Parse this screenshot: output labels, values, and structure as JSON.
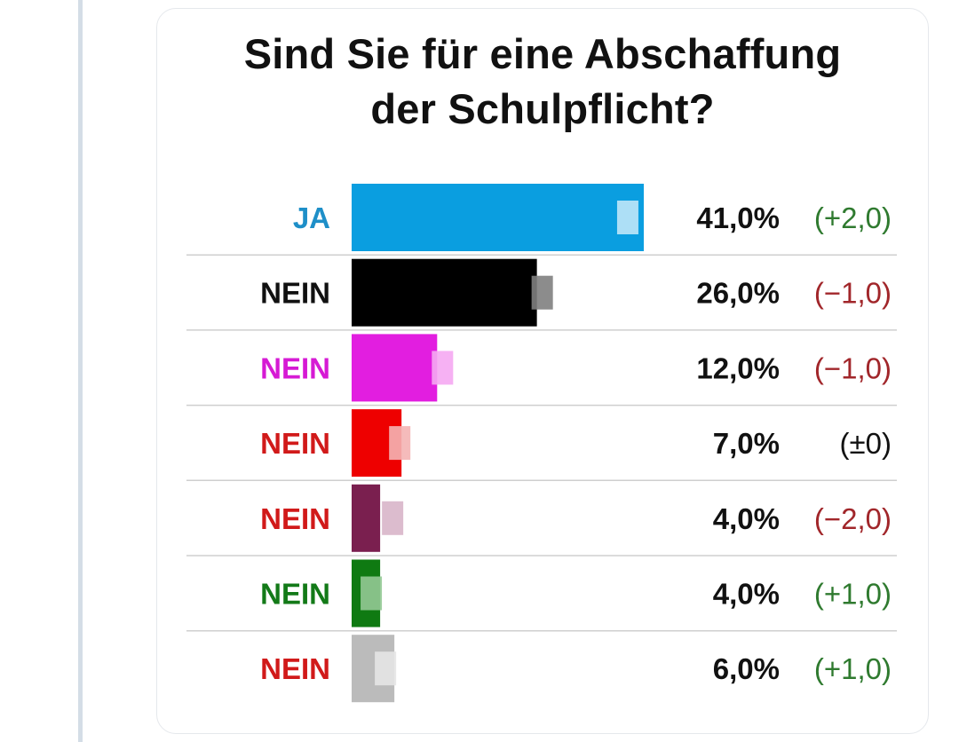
{
  "chart_data": {
    "type": "bar",
    "orientation": "horizontal",
    "title_lines": [
      "Sind Sie für eine Abschaffung",
      "der Schulpflicht?"
    ],
    "categories": [
      "JA",
      "NEIN",
      "NEIN",
      "NEIN",
      "NEIN",
      "NEIN",
      "NEIN"
    ],
    "values": [
      41.0,
      26.0,
      12.0,
      7.0,
      4.0,
      4.0,
      6.0
    ],
    "previous_values": [
      39.0,
      27.0,
      13.0,
      7.0,
      6.0,
      3.0,
      5.0
    ],
    "value_labels": [
      "41,0%",
      "26,0%",
      "12,0%",
      "7,0%",
      "4,0%",
      "4,0%",
      "6,0%"
    ],
    "change_labels": [
      "(+2,0)",
      "(−1,0)",
      "(−1,0)",
      "(±0)",
      "(−2,0)",
      "(+1,0)",
      "(+1,0)"
    ],
    "bar_colors": [
      "#0a9ee0",
      "#000000",
      "#e21ee0",
      "#ee0000",
      "#7a1f4f",
      "#0f7a12",
      "#bbbbbb"
    ],
    "previous_colors": [
      "#bfe6f8",
      "#808080",
      "#f5a8f2",
      "#f4b4b4",
      "#d8b5c9",
      "#93c995",
      "#e6e6e6"
    ],
    "label_colors": [
      "#1e8fc8",
      "#111111",
      "#d61ad4",
      "#d11a1a",
      "#d11a1a",
      "#137a18",
      "#d11a1a"
    ],
    "change_colors": [
      "#2f7a2f",
      "#a1262a",
      "#a1262a",
      "#111111",
      "#a1262a",
      "#2f7a2f",
      "#2f7a2f"
    ],
    "xlim": [
      0,
      41
    ],
    "grid": false,
    "legend": "none"
  }
}
